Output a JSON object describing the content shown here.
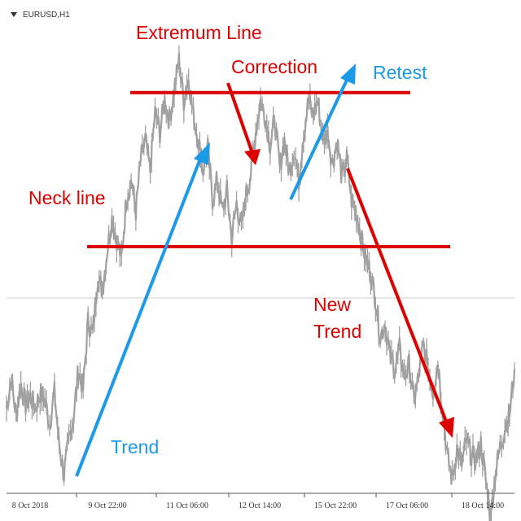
{
  "chart_data": {
    "type": "line",
    "symbol": "EURUSD,H1",
    "x_tick_labels": [
      "8 Oct 2018",
      "9 Oct 22:00",
      "11 Oct 06:00",
      "12 Oct 14:00",
      "15 Oct 22:00",
      "17 Oct 06:00",
      "18 Oct 14:00"
    ],
    "price_path": [
      0.12,
      0.2,
      0.1,
      0.18,
      0.13,
      0.15,
      0.12,
      0.16,
      0.14,
      0.08,
      0.16,
      0.03,
      -0.05,
      0.04,
      0.1,
      0.22,
      0.17,
      0.34,
      0.31,
      0.45,
      0.42,
      0.52,
      0.6,
      0.55,
      0.5,
      0.65,
      0.7,
      0.62,
      0.75,
      0.8,
      0.72,
      0.87,
      0.82,
      0.9,
      0.85,
      0.93,
      1.0,
      0.9,
      0.96,
      0.86,
      0.8,
      0.72,
      0.78,
      0.65,
      0.7,
      0.62,
      0.67,
      0.55,
      0.64,
      0.58,
      0.66,
      0.72,
      0.82,
      0.9,
      0.86,
      0.79,
      0.85,
      0.73,
      0.8,
      0.72,
      0.78,
      0.7,
      0.82,
      0.9,
      0.86,
      0.9,
      0.8,
      0.82,
      0.74,
      0.8,
      0.7,
      0.75,
      0.65,
      0.62,
      0.55,
      0.5,
      0.46,
      0.4,
      0.3,
      0.34,
      0.25,
      0.22,
      0.27,
      0.2,
      0.23,
      0.14,
      0.2,
      0.28,
      0.22,
      0.16,
      0.24,
      0.12,
      0.0,
      -0.06,
      0.02,
      -0.02,
      0.04,
      0.0,
      -0.01,
      0.03,
      -0.06,
      -0.16,
      -0.04,
      0.02,
      0.07,
      0.11,
      0.22
    ],
    "levels": [
      {
        "label": "Extremum Line",
        "value": 0.92,
        "color": "#dd0000"
      },
      {
        "label": "Neck line",
        "value": 0.53,
        "color": "#dd0000"
      }
    ],
    "reference_level": 0.4,
    "annotations": [
      {
        "label": "Trend",
        "color": "#1c9ae8"
      },
      {
        "label": "Correction",
        "color": "#dd0000"
      },
      {
        "label": "Retest",
        "color": "#1c9ae8"
      },
      {
        "label": "New\nTrend",
        "color": "#dd0000"
      }
    ],
    "colors": {
      "price": "#a0a0a0",
      "trend": "#1c9ae8",
      "levels": "#dd0000",
      "axis": "#555555"
    }
  }
}
